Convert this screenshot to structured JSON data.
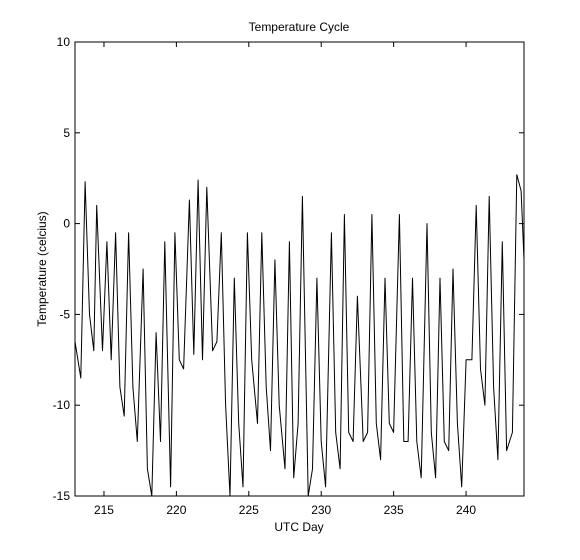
{
  "chart_data": {
    "type": "line",
    "title": "Temperature Cycle",
    "xlabel": "UTC Day",
    "ylabel": "Temperature (celcius)",
    "xlim": [
      213,
      244
    ],
    "ylim": [
      -15,
      10
    ],
    "xticks": [
      215,
      220,
      225,
      230,
      235,
      240
    ],
    "yticks": [
      -15,
      -10,
      -5,
      0,
      5,
      10
    ],
    "grid": false,
    "legend": "none",
    "line_color": "#000000",
    "series": [
      {
        "x": [
          213.0,
          213.4,
          213.7,
          214.0,
          214.3,
          214.5,
          214.9,
          215.2,
          215.5,
          215.8,
          216.1,
          216.4,
          216.7,
          217.0,
          217.3,
          217.7,
          218.0,
          218.3,
          218.6,
          218.9,
          219.2,
          219.6,
          219.9,
          220.2,
          220.5,
          220.9,
          221.2,
          221.5,
          221.8,
          222.1,
          222.5,
          222.8,
          223.1,
          223.4,
          223.7,
          224.0,
          224.3,
          224.6,
          224.9,
          225.2,
          225.6,
          225.9,
          226.2,
          226.5,
          226.8,
          227.1,
          227.5,
          227.8,
          228.1,
          228.4,
          228.7,
          229.1,
          229.4,
          229.7,
          230.0,
          230.3,
          230.7,
          231.0,
          231.3,
          231.6,
          231.9,
          232.2,
          232.5,
          232.9,
          233.2,
          233.5,
          233.8,
          234.1,
          234.4,
          234.7,
          235.0,
          235.4,
          235.7,
          236.0,
          236.3,
          236.6,
          236.9,
          237.3,
          237.6,
          237.9,
          238.2,
          238.5,
          238.8,
          239.1,
          239.4,
          239.7,
          240.0,
          240.4,
          240.7,
          241.0,
          241.3,
          241.6,
          241.9,
          242.2,
          242.5,
          242.8,
          243.2,
          243.5,
          243.8,
          244.0
        ],
        "y": [
          -6.5,
          -8.5,
          2.3,
          -5.0,
          -7.0,
          1.0,
          -7.0,
          -1.0,
          -7.5,
          -0.5,
          -9.0,
          -10.6,
          -0.5,
          -9.0,
          -12.0,
          -2.5,
          -13.5,
          -15.0,
          -6.0,
          -12.0,
          -1.0,
          -14.5,
          -0.5,
          -7.5,
          -8.0,
          1.3,
          -7.2,
          2.4,
          -7.5,
          2.0,
          -7.0,
          -6.5,
          -0.5,
          -10.0,
          -15.0,
          -3.0,
          -11.0,
          -14.5,
          -0.5,
          -7.5,
          -11.0,
          -0.5,
          -9.0,
          -12.5,
          -2.0,
          -10.0,
          -13.5,
          -1.0,
          -14.0,
          -11.0,
          1.5,
          -15.0,
          -13.5,
          -3.0,
          -12.0,
          -14.5,
          -0.5,
          -11.5,
          -13.5,
          0.5,
          -11.5,
          -12.0,
          -4.0,
          -12.0,
          -11.5,
          0.5,
          -11.0,
          -13.0,
          -3.0,
          -11.0,
          -11.5,
          0.5,
          -12.0,
          -12.0,
          -3.0,
          -12.0,
          -14.0,
          0.0,
          -11.5,
          -14.0,
          -3.0,
          -12.0,
          -12.5,
          -2.5,
          -11.0,
          -14.5,
          -7.5,
          -7.5,
          1.0,
          -8.0,
          -10.0,
          1.5,
          -9.0,
          -13.0,
          -1.0,
          -12.5,
          -11.5,
          2.7,
          1.8,
          -2.0
        ]
      }
    ]
  }
}
